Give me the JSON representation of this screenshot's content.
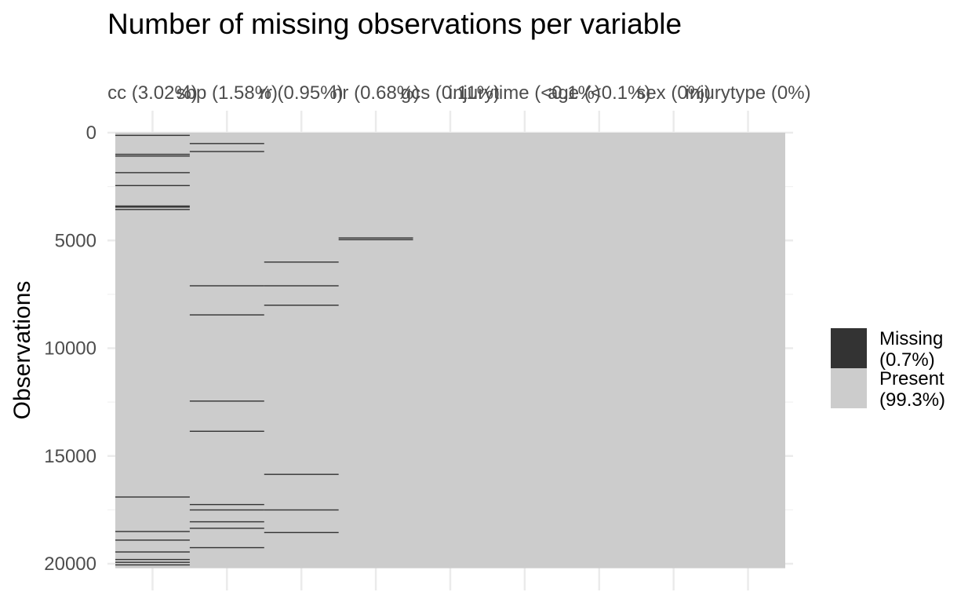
{
  "chart_data": {
    "type": "heatmap",
    "title": "Number of missing observations per variable",
    "ylabel": "Observations",
    "ylim": [
      0,
      20000
    ],
    "n_observations": 20207,
    "y_ticks": [
      0,
      5000,
      10000,
      15000,
      20000
    ],
    "y_tick_labels": [
      "0",
      "5000",
      "10000",
      "15000",
      "20000"
    ],
    "colors": {
      "missing": "#333333",
      "present": "#cccccc"
    },
    "legend_position": "right",
    "legend": [
      {
        "key": "missing",
        "label_line1": "Missing",
        "label_line2": "(0.7%)"
      },
      {
        "key": "present",
        "label_line1": "Present",
        "label_line2": "(99.3%)"
      }
    ],
    "variables": [
      {
        "label": "cc (3.02%)",
        "missing_rows": [
          120,
          1000,
          1080,
          1850,
          2450,
          3400,
          3450,
          3560,
          16900,
          18500,
          18900,
          19450,
          19800,
          19930,
          20050
        ]
      },
      {
        "label": "sbp (1.58%)",
        "missing_rows": [
          500,
          870,
          7100,
          8450,
          12450,
          13850,
          17250,
          17500,
          18050,
          18350,
          19250
        ]
      },
      {
        "label": "rr (0.95%)",
        "missing_rows": [
          6000,
          7100,
          8000,
          15850,
          17500,
          18550
        ]
      },
      {
        "label": "hr (0.68%)",
        "missing_rows": [
          4880,
          4960
        ]
      },
      {
        "label": "gcs (0.11%)",
        "missing_rows": []
      },
      {
        "label": "injurytime (<0.1%)",
        "missing_rows": []
      },
      {
        "label": "age (<0.1%)",
        "missing_rows": []
      },
      {
        "label": "sex (0%)",
        "missing_rows": []
      },
      {
        "label": "injurytype (0%)",
        "missing_rows": []
      }
    ]
  }
}
